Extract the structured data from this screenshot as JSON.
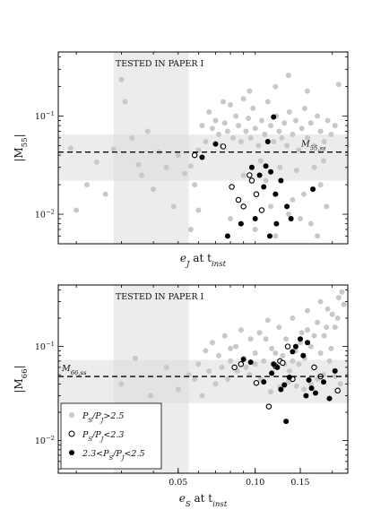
{
  "chart_data": [
    {
      "type": "scatter",
      "xlabel": "e_J at t_inst",
      "ylabel": "|M_55|",
      "xscale": "log",
      "yscale": "log",
      "xlim": [
        0.017,
        0.23
      ],
      "ylim": [
        0.005,
        0.45
      ],
      "y_ticks": [
        {
          "value": 0.1,
          "label": "10^-1"
        },
        {
          "value": 0.01,
          "label": "10^-2"
        }
      ],
      "x_ticks": [],
      "tested_band": {
        "x": [
          0.028,
          0.055
        ],
        "label": "TESTED IN PAPER I"
      },
      "reference_line": {
        "y": 0.043,
        "label": "M_55,ss",
        "band": [
          0.022,
          0.065
        ]
      },
      "series": [
        {
          "name": "P_S/P_J > 2.5",
          "style": "light-gray-filled",
          "points": [
            [
              0.019,
              0.047
            ],
            [
              0.02,
              0.011
            ],
            [
              0.022,
              0.02
            ],
            [
              0.024,
              0.034
            ],
            [
              0.026,
              0.016
            ],
            [
              0.028,
              0.046
            ],
            [
              0.03,
              0.235
            ],
            [
              0.031,
              0.14
            ],
            [
              0.033,
              0.06
            ],
            [
              0.035,
              0.032
            ],
            [
              0.036,
              0.025
            ],
            [
              0.038,
              0.07
            ],
            [
              0.04,
              0.018
            ],
            [
              0.042,
              0.043
            ],
            [
              0.045,
              0.03
            ],
            [
              0.048,
              0.012
            ],
            [
              0.05,
              0.04
            ],
            [
              0.053,
              0.026
            ],
            [
              0.056,
              0.031
            ],
            [
              0.058,
              0.02
            ],
            [
              0.06,
              0.045
            ],
            [
              0.062,
              0.08
            ],
            [
              0.064,
              0.055
            ],
            [
              0.066,
              0.11
            ],
            [
              0.068,
              0.075
            ],
            [
              0.07,
              0.09
            ],
            [
              0.072,
              0.065
            ],
            [
              0.074,
              0.05
            ],
            [
              0.076,
              0.085
            ],
            [
              0.078,
              0.07
            ],
            [
              0.08,
              0.13
            ],
            [
              0.082,
              0.06
            ],
            [
              0.084,
              0.1
            ],
            [
              0.086,
              0.08
            ],
            [
              0.088,
              0.055
            ],
            [
              0.09,
              0.15
            ],
            [
              0.092,
              0.07
            ],
            [
              0.094,
              0.095
            ],
            [
              0.096,
              0.06
            ],
            [
              0.098,
              0.12
            ],
            [
              0.1,
              0.075
            ],
            [
              0.103,
              0.05
            ],
            [
              0.106,
              0.09
            ],
            [
              0.109,
              0.065
            ],
            [
              0.112,
              0.14
            ],
            [
              0.115,
              0.08
            ],
            [
              0.118,
              0.055
            ],
            [
              0.121,
              0.1
            ],
            [
              0.124,
              0.07
            ],
            [
              0.127,
              0.06
            ],
            [
              0.13,
              0.085
            ],
            [
              0.133,
              0.05
            ],
            [
              0.136,
              0.11
            ],
            [
              0.14,
              0.065
            ],
            [
              0.144,
              0.09
            ],
            [
              0.148,
              0.045
            ],
            [
              0.152,
              0.075
            ],
            [
              0.156,
              0.12
            ],
            [
              0.16,
              0.06
            ],
            [
              0.165,
              0.085
            ],
            [
              0.17,
              0.05
            ],
            [
              0.175,
              0.1
            ],
            [
              0.18,
              0.07
            ],
            [
              0.186,
              0.055
            ],
            [
              0.192,
              0.09
            ],
            [
              0.198,
              0.065
            ],
            [
              0.205,
              0.08
            ],
            [
              0.212,
              0.21
            ],
            [
              0.135,
              0.26
            ],
            [
              0.12,
              0.2
            ],
            [
              0.095,
              0.18
            ],
            [
              0.075,
              0.14
            ],
            [
              0.16,
              0.18
            ],
            [
              0.105,
              0.035
            ],
            [
              0.125,
              0.03
            ],
            [
              0.145,
              0.028
            ],
            [
              0.09,
              0.025
            ],
            [
              0.11,
              0.022
            ],
            [
              0.17,
              0.03
            ],
            [
              0.185,
              0.035
            ],
            [
              0.115,
              0.012
            ],
            [
              0.135,
              0.01
            ],
            [
              0.15,
              0.009
            ],
            [
              0.165,
              0.008
            ],
            [
              0.175,
              0.006
            ],
            [
              0.19,
              0.012
            ],
            [
              0.08,
              0.009
            ],
            [
              0.1,
              0.007
            ],
            [
              0.12,
              0.006
            ],
            [
              0.06,
              0.011
            ],
            [
              0.056,
              0.007
            ],
            [
              0.14,
              0.014
            ],
            [
              0.155,
              0.016
            ],
            [
              0.18,
              0.02
            ]
          ]
        },
        {
          "name": "P_S/P_J < 2.3",
          "style": "open",
          "points": [
            [
              0.058,
              0.04
            ],
            [
              0.075,
              0.049
            ],
            [
              0.081,
              0.019
            ],
            [
              0.086,
              0.014
            ],
            [
              0.09,
              0.012
            ],
            [
              0.097,
              0.022
            ],
            [
              0.101,
              0.016
            ],
            [
              0.106,
              0.011
            ],
            [
              0.095,
              0.025
            ]
          ]
        },
        {
          "name": "2.3 < P_S/P_J < 2.5",
          "style": "dark-filled",
          "points": [
            [
              0.062,
              0.038
            ],
            [
              0.07,
              0.052
            ],
            [
              0.097,
              0.03
            ],
            [
              0.104,
              0.025
            ],
            [
              0.11,
              0.031
            ],
            [
              0.115,
              0.027
            ],
            [
              0.118,
              0.098
            ],
            [
              0.108,
              0.019
            ],
            [
              0.12,
              0.016
            ],
            [
              0.126,
              0.022
            ],
            [
              0.133,
              0.012
            ],
            [
              0.138,
              0.009
            ],
            [
              0.121,
              0.008
            ],
            [
              0.1,
              0.009
            ],
            [
              0.088,
              0.008
            ],
            [
              0.078,
              0.006
            ],
            [
              0.114,
              0.006
            ],
            [
              0.168,
              0.018
            ],
            [
              0.112,
              0.055
            ]
          ]
        }
      ]
    },
    {
      "type": "scatter",
      "xlabel": "e_S at t_inst",
      "ylabel": "|M_66|",
      "xscale": "log",
      "yscale": "log",
      "xlim": [
        0.017,
        0.23
      ],
      "ylim": [
        0.0045,
        0.45
      ],
      "y_ticks": [
        {
          "value": 0.1,
          "label": "10^-1"
        },
        {
          "value": 0.01,
          "label": "10^-2"
        }
      ],
      "x_ticks": [
        {
          "value": 0.05,
          "label": "0.05"
        },
        {
          "value": 0.1,
          "label": "0.10"
        },
        {
          "value": 0.15,
          "label": "0.15"
        }
      ],
      "tested_band": {
        "x": [
          0.028,
          0.055
        ],
        "label": "TESTED IN PAPER I"
      },
      "reference_line": {
        "y": 0.048,
        "label": "M_66,ss",
        "band": [
          0.025,
          0.072
        ]
      },
      "series": [
        {
          "name": "P_S/P_J > 2.5",
          "style": "light-gray-filled",
          "points": [
            [
              0.03,
              0.04
            ],
            [
              0.034,
              0.075
            ],
            [
              0.039,
              0.03
            ],
            [
              0.045,
              0.06
            ],
            [
              0.05,
              0.035
            ],
            [
              0.055,
              0.05
            ],
            [
              0.06,
              0.065
            ],
            [
              0.064,
              0.09
            ],
            [
              0.068,
              0.11
            ],
            [
              0.072,
              0.08
            ],
            [
              0.076,
              0.13
            ],
            [
              0.08,
              0.07
            ],
            [
              0.084,
              0.1
            ],
            [
              0.088,
              0.15
            ],
            [
              0.092,
              0.06
            ],
            [
              0.096,
              0.12
            ],
            [
              0.1,
              0.085
            ],
            [
              0.104,
              0.14
            ],
            [
              0.108,
              0.07
            ],
            [
              0.112,
              0.19
            ],
            [
              0.116,
              0.095
            ],
            [
              0.12,
              0.06
            ],
            [
              0.124,
              0.16
            ],
            [
              0.128,
              0.08
            ],
            [
              0.132,
              0.12
            ],
            [
              0.136,
              0.055
            ],
            [
              0.14,
              0.2
            ],
            [
              0.144,
              0.09
            ],
            [
              0.148,
              0.065
            ],
            [
              0.152,
              0.14
            ],
            [
              0.156,
              0.075
            ],
            [
              0.16,
              0.24
            ],
            [
              0.165,
              0.1
            ],
            [
              0.17,
              0.06
            ],
            [
              0.175,
              0.18
            ],
            [
              0.18,
              0.085
            ],
            [
              0.186,
              0.13
            ],
            [
              0.192,
              0.25
            ],
            [
              0.198,
              0.095
            ],
            [
              0.205,
              0.16
            ],
            [
              0.212,
              0.33
            ],
            [
              0.218,
              0.38
            ],
            [
              0.222,
              0.28
            ],
            [
              0.21,
              0.2
            ],
            [
              0.195,
              0.07
            ],
            [
              0.185,
              0.05
            ],
            [
              0.175,
              0.045
            ],
            [
              0.165,
              0.04
            ],
            [
              0.155,
              0.035
            ],
            [
              0.145,
              0.038
            ],
            [
              0.135,
              0.042
            ],
            [
              0.125,
              0.037
            ],
            [
              0.115,
              0.033
            ],
            [
              0.105,
              0.045
            ],
            [
              0.095,
              0.05
            ],
            [
              0.085,
              0.055
            ],
            [
              0.078,
              0.045
            ],
            [
              0.07,
              0.04
            ],
            [
              0.062,
              0.03
            ],
            [
              0.058,
              0.045
            ],
            [
              0.066,
              0.055
            ],
            [
              0.074,
              0.06
            ],
            [
              0.09,
              0.075
            ],
            [
              0.11,
              0.12
            ],
            [
              0.13,
              0.065
            ],
            [
              0.15,
              0.11
            ],
            [
              0.17,
              0.13
            ],
            [
              0.19,
              0.16
            ],
            [
              0.2,
              0.22
            ],
            [
              0.18,
              0.3
            ],
            [
              0.16,
              0.15
            ],
            [
              0.14,
              0.07
            ],
            [
              0.12,
              0.085
            ],
            [
              0.1,
              0.065
            ],
            [
              0.08,
              0.095
            ],
            [
              0.205,
              0.048
            ],
            [
              0.215,
              0.04
            ]
          ]
        },
        {
          "name": "P_S/P_J < 2.3",
          "style": "open",
          "points": [
            [
              0.083,
              0.06
            ],
            [
              0.088,
              0.065
            ],
            [
              0.101,
              0.041
            ],
            [
              0.113,
              0.023
            ],
            [
              0.12,
              0.062
            ],
            [
              0.125,
              0.07
            ],
            [
              0.128,
              0.067
            ],
            [
              0.134,
              0.1
            ],
            [
              0.14,
              0.045
            ],
            [
              0.17,
              0.06
            ],
            [
              0.18,
              0.048
            ],
            [
              0.21,
              0.034
            ]
          ]
        },
        {
          "name": "2.3 < P_S/P_J < 2.5",
          "style": "dark-filled",
          "points": [
            [
              0.09,
              0.073
            ],
            [
              0.096,
              0.068
            ],
            [
              0.108,
              0.042
            ],
            [
              0.116,
              0.052
            ],
            [
              0.122,
              0.06
            ],
            [
              0.126,
              0.035
            ],
            [
              0.13,
              0.039
            ],
            [
              0.136,
              0.047
            ],
            [
              0.14,
              0.088
            ],
            [
              0.144,
              0.1
            ],
            [
              0.15,
              0.12
            ],
            [
              0.154,
              0.08
            ],
            [
              0.158,
              0.03
            ],
            [
              0.162,
              0.044
            ],
            [
              0.166,
              0.036
            ],
            [
              0.172,
              0.032
            ],
            [
              0.185,
              0.042
            ],
            [
              0.195,
              0.028
            ],
            [
              0.205,
              0.055
            ],
            [
              0.132,
              0.016
            ],
            [
              0.16,
              0.11
            ],
            [
              0.118,
              0.065
            ]
          ]
        }
      ],
      "legend": {
        "position": "lower-left",
        "entries": [
          "P_S/P_J>2.5",
          "P_S/P_J<2.3",
          "2.3<P_S/P_J<2.5"
        ]
      }
    }
  ]
}
